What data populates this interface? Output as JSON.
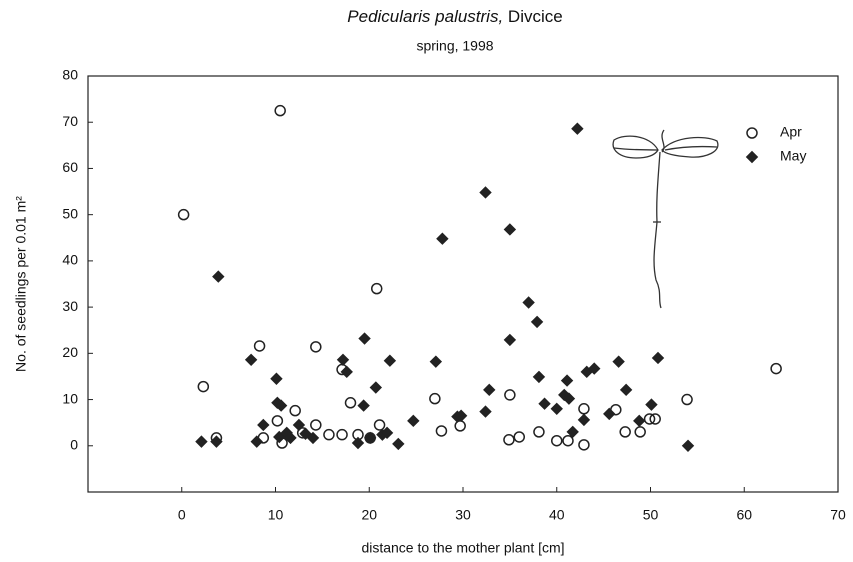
{
  "chart_data": {
    "type": "scatter",
    "title": "Pedicularis palustris,",
    "title_place": "Divcice",
    "subtitle": "spring, 1998",
    "x_label": "distance to the mother plant [cm]",
    "y_label": "No. of seedlings per 0.01 m²",
    "xlim": [
      -10,
      70
    ],
    "xticks": [
      0,
      10,
      20,
      30,
      40,
      50,
      60,
      70
    ],
    "ylim": [
      -10,
      80
    ],
    "yticks": [
      0,
      10,
      20,
      30,
      40,
      50,
      60,
      70,
      80
    ],
    "legend": "top-right",
    "series": [
      {
        "name": "Apr",
        "color": "#222222",
        "marker": "open-circle",
        "x": [
          0.2,
          2.3,
          3.7,
          8.3,
          8.7,
          10.2,
          10.5,
          10.7,
          12.1,
          12.9,
          14.3,
          14.3,
          15.7,
          17.1,
          17.1,
          18.0,
          18.8,
          20.1,
          20.8,
          21.1,
          27.0,
          27.7,
          29.7,
          34.9,
          35.0,
          36.0,
          38.1,
          40.0,
          41.2,
          42.9,
          42.9,
          46.3,
          47.3,
          48.9,
          49.9,
          50.5,
          53.9,
          63.4
        ],
        "values": [
          50,
          12.8,
          1.7,
          21.6,
          1.7,
          5.4,
          72.5,
          0.6,
          7.6,
          2.8,
          4.5,
          21.4,
          2.4,
          2.4,
          16.5,
          9.3,
          2.4,
          1.7,
          34,
          4.5,
          10.2,
          3.2,
          4.3,
          1.3,
          11,
          1.9,
          3.0,
          1.1,
          1.1,
          8,
          0.2,
          7.8,
          3,
          3,
          5.8,
          5.8,
          10,
          16.7
        ]
      },
      {
        "name": "May",
        "color": "#222222",
        "marker": "diamond",
        "x": [
          2.1,
          3.7,
          3.9,
          7.4,
          8.0,
          8.7,
          10.1,
          10.2,
          10.6,
          10.4,
          11.2,
          11.6,
          12.5,
          13.2,
          14.0,
          17.2,
          17.6,
          18.8,
          19.4,
          19.5,
          20.1,
          20.7,
          21.4,
          21.9,
          22.2,
          23.1,
          24.7,
          27.1,
          27.8,
          29.4,
          29.8,
          32.4,
          32.4,
          32.8,
          35.0,
          35.0,
          37.0,
          37.9,
          38.1,
          38.7,
          40.0,
          40.8,
          41.1,
          41.3,
          41.7,
          42.2,
          42.9,
          43.2,
          44.0,
          45.6,
          46.6,
          47.4,
          48.8,
          50.1,
          50.8,
          54.0
        ],
        "values": [
          0.9,
          0.9,
          36.6,
          18.6,
          0.9,
          4.5,
          14.5,
          9.3,
          8.7,
          1.9,
          2.8,
          1.7,
          4.5,
          2.6,
          1.7,
          18.6,
          16,
          0.6,
          8.7,
          23.2,
          1.7,
          12.6,
          2.4,
          2.8,
          18.4,
          0.4,
          5.4,
          18.2,
          44.8,
          6.3,
          6.5,
          54.8,
          7.4,
          12.1,
          46.8,
          22.9,
          31,
          26.8,
          14.9,
          9.1,
          8,
          11,
          14.1,
          10.2,
          3,
          68.6,
          5.6,
          16,
          16.7,
          6.9,
          18.2,
          12.1,
          5.4,
          8.9,
          19,
          0
        ]
      }
    ]
  }
}
